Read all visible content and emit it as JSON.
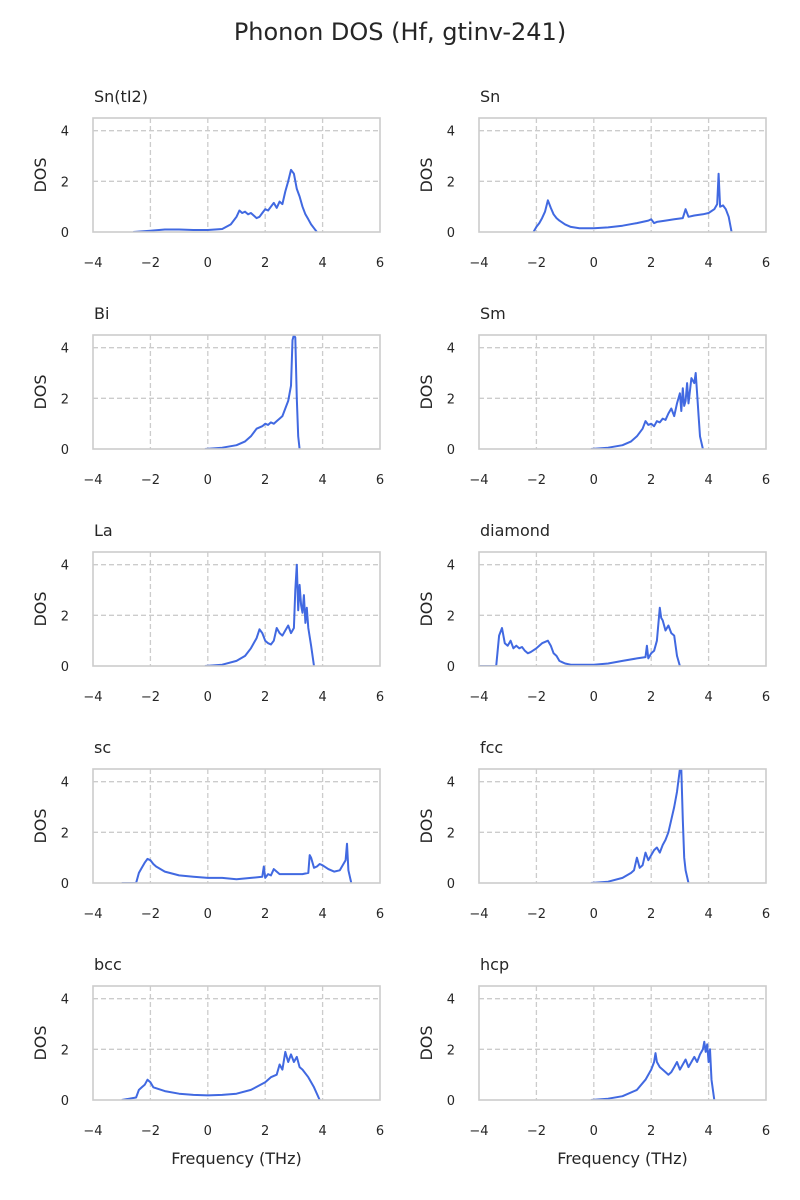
{
  "figure_title": "Phonon DOS (Hf, gtinv-241)",
  "style": {
    "line_color": "#4169e1",
    "grid_color": "#cccccc",
    "frame_color": "#cccccc",
    "text_color": "#262626"
  },
  "chart_data": [
    {
      "type": "line",
      "title": "Sn(tI2)",
      "xlabel": "",
      "ylabel": "DOS",
      "xlim": [
        -4,
        6
      ],
      "ylim": [
        0,
        4.5
      ],
      "xticks": [
        "−4",
        "−2",
        "0",
        "2",
        "4",
        "6"
      ],
      "yticks": [
        "0",
        "2",
        "4"
      ],
      "grid": true,
      "series": [
        {
          "x": [
            -2.6,
            -2.0,
            -1.5,
            -1.0,
            -0.5,
            0,
            0.5,
            0.8,
            1.0,
            1.1,
            1.2,
            1.3,
            1.4,
            1.5,
            1.6,
            1.7,
            1.8,
            1.9,
            2.0,
            2.1,
            2.2,
            2.3,
            2.4,
            2.5,
            2.6,
            2.7,
            2.8,
            2.9,
            3.0,
            3.1,
            3.2,
            3.3,
            3.4,
            3.5,
            3.6,
            3.7,
            3.8
          ],
          "y": [
            0,
            0.05,
            0.1,
            0.1,
            0.08,
            0.08,
            0.12,
            0.3,
            0.6,
            0.85,
            0.75,
            0.8,
            0.7,
            0.75,
            0.65,
            0.55,
            0.6,
            0.75,
            0.9,
            0.85,
            1.0,
            1.15,
            0.95,
            1.2,
            1.1,
            1.6,
            2.0,
            2.45,
            2.3,
            1.7,
            1.4,
            1.0,
            0.7,
            0.5,
            0.3,
            0.15,
            0
          ]
        }
      ]
    },
    {
      "type": "line",
      "title": "Sn",
      "xlabel": "",
      "ylabel": "DOS",
      "xlim": [
        -4,
        6
      ],
      "ylim": [
        0,
        4.5
      ],
      "xticks": [
        "−4",
        "−2",
        "0",
        "2",
        "4",
        "6"
      ],
      "yticks": [
        "0",
        "2",
        "4"
      ],
      "grid": true,
      "series": [
        {
          "x": [
            -2.1,
            -2.0,
            -1.9,
            -1.8,
            -1.7,
            -1.6,
            -1.5,
            -1.4,
            -1.3,
            -1.2,
            -1.0,
            -0.8,
            -0.5,
            0,
            0.5,
            1.0,
            1.5,
            1.9,
            2.0,
            2.1,
            2.2,
            2.5,
            2.8,
            3.1,
            3.2,
            3.3,
            3.5,
            3.8,
            4.0,
            4.2,
            4.3,
            4.35,
            4.4,
            4.5,
            4.6,
            4.7,
            4.8
          ],
          "y": [
            0,
            0.2,
            0.35,
            0.55,
            0.8,
            1.25,
            0.95,
            0.7,
            0.55,
            0.45,
            0.3,
            0.2,
            0.15,
            0.15,
            0.18,
            0.25,
            0.35,
            0.45,
            0.5,
            0.35,
            0.4,
            0.45,
            0.5,
            0.55,
            0.9,
            0.6,
            0.65,
            0.7,
            0.75,
            0.9,
            1.1,
            2.3,
            1.0,
            1.05,
            0.9,
            0.6,
            0
          ]
        }
      ]
    },
    {
      "type": "line",
      "title": "Bi",
      "xlabel": "",
      "ylabel": "DOS",
      "xlim": [
        -4,
        6
      ],
      "ylim": [
        0,
        4.5
      ],
      "xticks": [
        "−4",
        "−2",
        "0",
        "2",
        "4",
        "6"
      ],
      "yticks": [
        "0",
        "2",
        "4"
      ],
      "grid": true,
      "series": [
        {
          "x": [
            -0.1,
            0.5,
            1.0,
            1.3,
            1.5,
            1.7,
            1.9,
            2.0,
            2.1,
            2.2,
            2.3,
            2.4,
            2.5,
            2.6,
            2.7,
            2.8,
            2.9,
            2.95,
            3.0,
            3.05,
            3.1,
            3.15,
            3.2
          ],
          "y": [
            0,
            0.05,
            0.15,
            0.3,
            0.5,
            0.8,
            0.9,
            1.0,
            0.95,
            1.05,
            1.0,
            1.1,
            1.2,
            1.3,
            1.6,
            1.9,
            2.5,
            4.3,
            4.5,
            4.4,
            2.0,
            0.5,
            0
          ]
        }
      ]
    },
    {
      "type": "line",
      "title": "Sm",
      "xlabel": "",
      "ylabel": "DOS",
      "xlim": [
        -4,
        6
      ],
      "ylim": [
        0,
        4.5
      ],
      "xticks": [
        "−4",
        "−2",
        "0",
        "2",
        "4",
        "6"
      ],
      "yticks": [
        "0",
        "2",
        "4"
      ],
      "grid": true,
      "series": [
        {
          "x": [
            -0.1,
            0.5,
            1.0,
            1.3,
            1.5,
            1.7,
            1.8,
            1.9,
            2.0,
            2.1,
            2.2,
            2.3,
            2.4,
            2.5,
            2.6,
            2.7,
            2.8,
            2.9,
            3.0,
            3.05,
            3.1,
            3.15,
            3.2,
            3.25,
            3.3,
            3.4,
            3.5,
            3.55,
            3.6,
            3.65,
            3.7,
            3.8
          ],
          "y": [
            0,
            0.05,
            0.15,
            0.3,
            0.5,
            0.8,
            1.1,
            0.95,
            1.0,
            0.9,
            1.1,
            1.05,
            1.2,
            1.15,
            1.4,
            1.6,
            1.3,
            1.8,
            2.2,
            1.5,
            2.4,
            1.7,
            1.9,
            2.6,
            1.8,
            2.8,
            2.6,
            3.0,
            2.2,
            1.3,
            0.5,
            0
          ]
        }
      ]
    },
    {
      "type": "line",
      "title": "La",
      "xlabel": "",
      "ylabel": "DOS",
      "xlim": [
        -4,
        6
      ],
      "ylim": [
        0,
        4.5
      ],
      "xticks": [
        "−4",
        "−2",
        "0",
        "2",
        "4",
        "6"
      ],
      "yticks": [
        "0",
        "2",
        "4"
      ],
      "grid": true,
      "series": [
        {
          "x": [
            -0.1,
            0.5,
            1.0,
            1.3,
            1.5,
            1.7,
            1.8,
            1.9,
            2.0,
            2.1,
            2.2,
            2.3,
            2.4,
            2.5,
            2.6,
            2.7,
            2.8,
            2.9,
            3.0,
            3.05,
            3.1,
            3.15,
            3.2,
            3.25,
            3.3,
            3.35,
            3.4,
            3.45,
            3.5,
            3.6,
            3.7
          ],
          "y": [
            0,
            0.05,
            0.2,
            0.4,
            0.7,
            1.1,
            1.45,
            1.3,
            1.0,
            0.9,
            0.85,
            1.0,
            1.5,
            1.3,
            1.2,
            1.4,
            1.6,
            1.3,
            1.5,
            3.0,
            4.0,
            2.2,
            3.2,
            2.4,
            2.1,
            2.8,
            1.7,
            2.3,
            1.5,
            0.8,
            0
          ]
        }
      ]
    },
    {
      "type": "line",
      "title": "diamond",
      "xlabel": "",
      "ylabel": "DOS",
      "xlim": [
        -4,
        6
      ],
      "ylim": [
        0,
        4.5
      ],
      "xticks": [
        "−4",
        "−2",
        "0",
        "2",
        "4",
        "6"
      ],
      "yticks": [
        "0",
        "2",
        "4"
      ],
      "grid": true,
      "series": [
        {
          "x": [
            -4.0,
            -3.4,
            -3.3,
            -3.2,
            -3.1,
            -3.0,
            -2.9,
            -2.8,
            -2.7,
            -2.6,
            -2.5,
            -2.4,
            -2.3,
            -2.2,
            -2.0,
            -1.8,
            -1.6,
            -1.5,
            -1.4,
            -1.3,
            -1.2,
            -1.1,
            -1.0,
            -0.8,
            -0.5,
            0,
            0.5,
            1.0,
            1.5,
            1.8,
            1.85,
            1.9,
            2.0,
            2.1,
            2.2,
            2.3,
            2.35,
            2.4,
            2.5,
            2.6,
            2.7,
            2.8,
            2.9,
            3.0
          ],
          "y": [
            0,
            0,
            1.2,
            1.5,
            0.9,
            0.8,
            1.0,
            0.7,
            0.8,
            0.7,
            0.75,
            0.6,
            0.5,
            0.55,
            0.7,
            0.9,
            1.0,
            0.8,
            0.5,
            0.4,
            0.2,
            0.15,
            0.1,
            0.05,
            0.05,
            0.05,
            0.1,
            0.2,
            0.3,
            0.35,
            0.8,
            0.3,
            0.5,
            0.6,
            1.0,
            2.3,
            1.9,
            1.8,
            1.4,
            1.6,
            1.3,
            1.2,
            0.4,
            0
          ]
        }
      ]
    },
    {
      "type": "line",
      "title": "sc",
      "xlabel": "",
      "ylabel": "DOS",
      "xlim": [
        -4,
        6
      ],
      "ylim": [
        0,
        4.5
      ],
      "xticks": [
        "−4",
        "−2",
        "0",
        "2",
        "4",
        "6"
      ],
      "yticks": [
        "0",
        "2",
        "4"
      ],
      "grid": true,
      "series": [
        {
          "x": [
            -3.0,
            -2.5,
            -2.4,
            -2.3,
            -2.2,
            -2.1,
            -2.0,
            -1.9,
            -1.8,
            -1.5,
            -1.0,
            -0.5,
            0,
            0.5,
            1.0,
            1.5,
            1.9,
            1.95,
            2.0,
            2.1,
            2.2,
            2.3,
            2.5,
            3.0,
            3.3,
            3.5,
            3.55,
            3.6,
            3.7,
            3.8,
            3.9,
            4.0,
            4.2,
            4.4,
            4.6,
            4.8,
            4.85,
            4.9,
            5.0
          ],
          "y": [
            0,
            0,
            0.4,
            0.6,
            0.8,
            0.95,
            0.9,
            0.75,
            0.65,
            0.45,
            0.3,
            0.25,
            0.2,
            0.2,
            0.15,
            0.2,
            0.25,
            0.65,
            0.2,
            0.35,
            0.3,
            0.55,
            0.35,
            0.35,
            0.35,
            0.4,
            1.1,
            1.0,
            0.6,
            0.65,
            0.75,
            0.7,
            0.55,
            0.45,
            0.5,
            0.9,
            1.55,
            0.5,
            0
          ]
        }
      ]
    },
    {
      "type": "line",
      "title": "fcc",
      "xlabel": "",
      "ylabel": "DOS",
      "xlim": [
        -4,
        6
      ],
      "ylim": [
        0,
        4.5
      ],
      "xticks": [
        "−4",
        "−2",
        "0",
        "2",
        "4",
        "6"
      ],
      "yticks": [
        "0",
        "2",
        "4"
      ],
      "grid": true,
      "series": [
        {
          "x": [
            -0.1,
            0.5,
            1.0,
            1.3,
            1.4,
            1.5,
            1.6,
            1.7,
            1.8,
            1.9,
            2.0,
            2.1,
            2.2,
            2.3,
            2.4,
            2.5,
            2.6,
            2.7,
            2.8,
            2.9,
            3.0,
            3.05,
            3.1,
            3.15,
            3.2,
            3.3
          ],
          "y": [
            0,
            0.05,
            0.2,
            0.4,
            0.5,
            1.0,
            0.6,
            0.7,
            1.2,
            0.9,
            1.1,
            1.3,
            1.4,
            1.2,
            1.5,
            1.7,
            2.0,
            2.5,
            3.0,
            3.6,
            4.5,
            4.5,
            2.5,
            1.0,
            0.5,
            0
          ]
        }
      ]
    },
    {
      "type": "line",
      "title": "bcc",
      "xlabel": "Frequency (THz)",
      "ylabel": "DOS",
      "xlim": [
        -4,
        6
      ],
      "ylim": [
        0,
        4.5
      ],
      "xticks": [
        "−4",
        "−2",
        "0",
        "2",
        "4",
        "6"
      ],
      "yticks": [
        "0",
        "2",
        "4"
      ],
      "grid": true,
      "series": [
        {
          "x": [
            -3.0,
            -2.5,
            -2.4,
            -2.3,
            -2.2,
            -2.1,
            -2.0,
            -1.9,
            -1.5,
            -1.0,
            -0.5,
            0,
            0.5,
            1.0,
            1.5,
            2.0,
            2.2,
            2.4,
            2.5,
            2.6,
            2.7,
            2.8,
            2.9,
            3.0,
            3.1,
            3.2,
            3.3,
            3.5,
            3.7,
            3.9
          ],
          "y": [
            0,
            0.1,
            0.4,
            0.5,
            0.6,
            0.8,
            0.7,
            0.5,
            0.35,
            0.25,
            0.2,
            0.18,
            0.2,
            0.25,
            0.4,
            0.7,
            0.9,
            1.0,
            1.4,
            1.2,
            1.9,
            1.5,
            1.8,
            1.5,
            1.7,
            1.3,
            1.2,
            0.9,
            0.5,
            0
          ]
        }
      ]
    },
    {
      "type": "line",
      "title": "hcp",
      "xlabel": "Frequency (THz)",
      "ylabel": "DOS",
      "xlim": [
        -4,
        6
      ],
      "ylim": [
        0,
        4.5
      ],
      "xticks": [
        "−4",
        "−2",
        "0",
        "2",
        "4",
        "6"
      ],
      "yticks": [
        "0",
        "2",
        "4"
      ],
      "grid": true,
      "series": [
        {
          "x": [
            -0.1,
            0.5,
            1.0,
            1.5,
            1.8,
            2.0,
            2.1,
            2.15,
            2.2,
            2.3,
            2.4,
            2.5,
            2.6,
            2.7,
            2.8,
            2.9,
            3.0,
            3.1,
            3.2,
            3.3,
            3.4,
            3.5,
            3.6,
            3.7,
            3.8,
            3.85,
            3.9,
            3.95,
            4.0,
            4.05,
            4.1,
            4.2
          ],
          "y": [
            0,
            0.05,
            0.15,
            0.4,
            0.8,
            1.2,
            1.5,
            1.85,
            1.5,
            1.3,
            1.2,
            1.1,
            1.0,
            1.1,
            1.3,
            1.5,
            1.2,
            1.4,
            1.6,
            1.3,
            1.5,
            1.7,
            1.5,
            1.8,
            2.0,
            2.3,
            1.9,
            2.2,
            1.5,
            2.0,
            0.8,
            0
          ]
        }
      ]
    }
  ]
}
